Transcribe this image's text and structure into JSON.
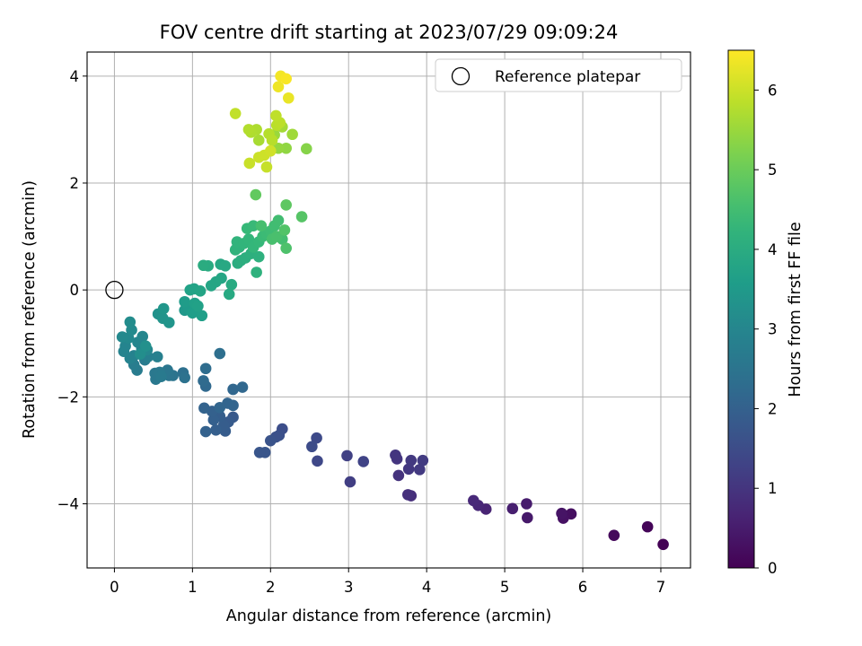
{
  "chart_data": {
    "type": "scatter",
    "title": "FOV centre drift starting at 2023/07/29 09:09:24",
    "xlabel": "Angular distance from reference (arcmin)",
    "ylabel": "Rotation from reference (arcmin)",
    "xlim": [
      -0.35,
      7.38
    ],
    "ylim": [
      -5.2,
      4.45
    ],
    "xticks": [
      0,
      1,
      2,
      3,
      4,
      5,
      6,
      7
    ],
    "yticks": [
      -4,
      -2,
      0,
      2,
      4
    ],
    "grid": true,
    "legend": {
      "position": "top-right",
      "entries": [
        "Reference platepar"
      ]
    },
    "reference_point": {
      "x": 0,
      "y": 0,
      "label": "Reference platepar"
    },
    "colorbar": {
      "label": "Hours from first FF file",
      "range": [
        0,
        6.5
      ],
      "ticks": [
        0,
        1,
        2,
        3,
        4,
        5,
        6
      ],
      "colormap": "viridis"
    },
    "points": [
      [
        7.03,
        -4.76,
        0.02
      ],
      [
        6.83,
        -4.43,
        0.08
      ],
      [
        6.4,
        -4.59,
        0.15
      ],
      [
        5.85,
        -4.19,
        0.25
      ],
      [
        5.75,
        -4.27,
        0.3
      ],
      [
        5.73,
        -4.18,
        0.35
      ],
      [
        5.29,
        -4.26,
        0.45
      ],
      [
        5.28,
        -4.0,
        0.5
      ],
      [
        5.1,
        -4.09,
        0.55
      ],
      [
        4.76,
        -4.1,
        0.65
      ],
      [
        4.66,
        -4.03,
        0.7
      ],
      [
        4.6,
        -3.94,
        0.75
      ],
      [
        3.8,
        -3.85,
        0.85
      ],
      [
        3.76,
        -3.83,
        0.9
      ],
      [
        3.64,
        -3.47,
        0.95
      ],
      [
        3.62,
        -3.16,
        1.0
      ],
      [
        3.6,
        -3.09,
        1.02
      ],
      [
        3.77,
        -3.35,
        1.05
      ],
      [
        3.8,
        -3.19,
        1.08
      ],
      [
        3.91,
        -3.36,
        1.1
      ],
      [
        3.95,
        -3.19,
        1.12
      ],
      [
        3.02,
        -3.59,
        1.2
      ],
      [
        2.98,
        -3.1,
        1.25
      ],
      [
        3.19,
        -3.21,
        1.3
      ],
      [
        2.6,
        -3.2,
        1.4
      ],
      [
        2.59,
        -2.77,
        1.45
      ],
      [
        2.53,
        -2.93,
        1.5
      ],
      [
        2.15,
        -2.6,
        1.55
      ],
      [
        2.11,
        -2.72,
        1.6
      ],
      [
        2.07,
        -2.75,
        1.62
      ],
      [
        2.0,
        -2.82,
        1.65
      ],
      [
        1.93,
        -3.04,
        1.7
      ],
      [
        1.86,
        -3.04,
        1.72
      ],
      [
        1.52,
        -2.38,
        1.8
      ],
      [
        1.46,
        -2.47,
        1.85
      ],
      [
        1.42,
        -2.64,
        1.88
      ],
      [
        1.4,
        -2.53,
        1.9
      ],
      [
        1.35,
        -2.36,
        1.92
      ],
      [
        1.3,
        -2.62,
        1.95
      ],
      [
        1.27,
        -2.43,
        1.98
      ],
      [
        1.25,
        -2.27,
        2.0
      ],
      [
        1.17,
        -2.65,
        2.02
      ],
      [
        1.15,
        -2.21,
        2.05
      ],
      [
        1.52,
        -2.16,
        2.08
      ],
      [
        1.45,
        -2.12,
        2.1
      ],
      [
        1.35,
        -2.2,
        2.12
      ],
      [
        1.52,
        -1.86,
        2.15
      ],
      [
        1.64,
        -1.82,
        2.18
      ],
      [
        1.17,
        -1.8,
        2.2
      ],
      [
        1.14,
        -1.7,
        2.25
      ],
      [
        1.17,
        -1.47,
        2.3
      ],
      [
        1.35,
        -1.19,
        2.35
      ],
      [
        0.88,
        -1.55,
        2.4
      ],
      [
        0.9,
        -1.64,
        2.45
      ],
      [
        0.75,
        -1.6,
        2.5
      ],
      [
        0.7,
        -1.6,
        2.52
      ],
      [
        0.68,
        -1.5,
        2.55
      ],
      [
        0.53,
        -1.67,
        2.6
      ],
      [
        0.52,
        -1.56,
        2.62
      ],
      [
        0.58,
        -1.54,
        2.65
      ],
      [
        0.6,
        -1.62,
        2.67
      ],
      [
        0.39,
        -1.31,
        2.7
      ],
      [
        0.29,
        -1.5,
        2.72
      ],
      [
        0.25,
        -1.4,
        2.75
      ],
      [
        0.4,
        -1.23,
        2.78
      ],
      [
        0.43,
        -1.25,
        2.8
      ],
      [
        0.55,
        -1.25,
        2.82
      ],
      [
        0.35,
        -1.1,
        2.85
      ],
      [
        0.25,
        -1.23,
        2.87
      ],
      [
        0.2,
        -1.28,
        2.9
      ],
      [
        0.12,
        -1.15,
        2.92
      ],
      [
        0.14,
        -1.05,
        2.95
      ],
      [
        0.3,
        -0.98,
        2.97
      ],
      [
        0.36,
        -0.87,
        3.0
      ],
      [
        0.42,
        -1.12,
        3.02
      ],
      [
        0.18,
        -0.9,
        3.05
      ],
      [
        0.1,
        -0.88,
        3.07
      ],
      [
        0.22,
        -0.75,
        3.1
      ],
      [
        0.2,
        -0.6,
        3.15
      ],
      [
        0.33,
        -1.2,
        3.2
      ],
      [
        0.4,
        -1.05,
        3.25
      ],
      [
        0.56,
        -0.45,
        3.3
      ],
      [
        0.62,
        -0.53,
        3.35
      ],
      [
        0.7,
        -0.61,
        3.38
      ],
      [
        0.63,
        -0.35,
        3.4
      ],
      [
        0.9,
        -0.38,
        3.45
      ],
      [
        0.95,
        -0.35,
        3.5
      ],
      [
        0.9,
        -0.22,
        3.55
      ],
      [
        1.0,
        -0.43,
        3.6
      ],
      [
        1.05,
        -0.4,
        3.62
      ],
      [
        1.12,
        -0.48,
        3.65
      ],
      [
        1.03,
        -0.25,
        3.68
      ],
      [
        1.07,
        -0.3,
        3.7
      ],
      [
        0.97,
        0.0,
        3.72
      ],
      [
        1.02,
        0.02,
        3.75
      ],
      [
        1.1,
        -0.02,
        3.78
      ],
      [
        1.24,
        0.08,
        3.8
      ],
      [
        1.3,
        0.15,
        3.82
      ],
      [
        1.37,
        0.22,
        3.85
      ],
      [
        1.36,
        0.48,
        3.88
      ],
      [
        1.42,
        0.45,
        3.9
      ],
      [
        1.47,
        -0.08,
        3.92
      ],
      [
        1.5,
        0.1,
        3.95
      ],
      [
        1.2,
        0.45,
        3.97
      ],
      [
        1.14,
        0.46,
        4.0
      ],
      [
        1.58,
        0.5,
        4.02
      ],
      [
        1.62,
        0.55,
        4.05
      ],
      [
        1.68,
        0.6,
        4.07
      ],
      [
        1.75,
        0.68,
        4.1
      ],
      [
        1.85,
        0.62,
        4.12
      ],
      [
        1.82,
        0.33,
        4.15
      ],
      [
        1.55,
        0.75,
        4.18
      ],
      [
        1.6,
        0.8,
        4.2
      ],
      [
        1.57,
        0.9,
        4.22
      ],
      [
        1.66,
        0.87,
        4.25
      ],
      [
        1.72,
        0.95,
        4.27
      ],
      [
        1.78,
        0.8,
        4.3
      ],
      [
        1.85,
        0.9,
        4.32
      ],
      [
        1.7,
        1.15,
        4.35
      ],
      [
        1.78,
        1.2,
        4.38
      ],
      [
        1.9,
        1.0,
        4.4
      ],
      [
        1.95,
        1.05,
        4.42
      ],
      [
        2.0,
        1.1,
        4.45
      ],
      [
        2.05,
        1.2,
        4.48
      ],
      [
        2.1,
        1.3,
        4.5
      ],
      [
        2.15,
        0.95,
        4.52
      ],
      [
        1.88,
        1.2,
        4.55
      ],
      [
        2.02,
        0.95,
        4.58
      ],
      [
        2.08,
        1.0,
        4.6
      ],
      [
        2.2,
        0.78,
        4.65
      ],
      [
        2.18,
        1.12,
        4.7
      ],
      [
        2.4,
        1.37,
        4.75
      ],
      [
        2.2,
        1.59,
        4.85
      ],
      [
        1.81,
        1.78,
        4.9
      ],
      [
        2.46,
        2.64,
        5.3
      ],
      [
        2.2,
        2.65,
        5.4
      ],
      [
        2.1,
        2.65,
        5.45
      ],
      [
        2.05,
        2.9,
        5.5
      ],
      [
        2.28,
        2.91,
        5.55
      ],
      [
        2.15,
        3.05,
        5.6
      ],
      [
        1.85,
        2.8,
        5.65
      ],
      [
        1.82,
        3.0,
        5.7
      ],
      [
        1.75,
        2.95,
        5.72
      ],
      [
        1.72,
        3.0,
        5.75
      ],
      [
        1.98,
        2.92,
        5.78
      ],
      [
        2.02,
        2.8,
        5.8
      ],
      [
        2.08,
        3.08,
        5.82
      ],
      [
        2.12,
        3.13,
        5.85
      ],
      [
        2.07,
        3.26,
        5.88
      ],
      [
        1.55,
        3.3,
        5.9
      ],
      [
        1.95,
        2.3,
        5.95
      ],
      [
        1.73,
        2.37,
        5.97
      ],
      [
        1.85,
        2.48,
        6.0
      ],
      [
        1.92,
        2.52,
        6.02
      ],
      [
        2.0,
        2.6,
        6.05
      ],
      [
        2.23,
        3.59,
        6.3
      ],
      [
        2.1,
        3.8,
        6.35
      ],
      [
        2.13,
        4.0,
        6.4
      ],
      [
        2.2,
        3.95,
        6.45
      ]
    ]
  }
}
